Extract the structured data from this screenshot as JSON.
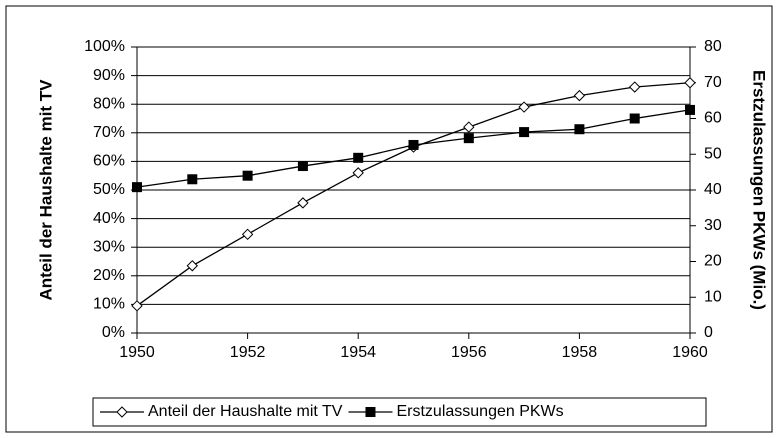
{
  "chart_data": {
    "type": "line",
    "x": [
      1950,
      1951,
      1952,
      1953,
      1954,
      1955,
      1956,
      1957,
      1958,
      1959,
      1960
    ],
    "xlim": [
      1950,
      1960
    ],
    "xticks": [
      1950,
      1952,
      1954,
      1956,
      1958,
      1960
    ],
    "ylabel": "Anteil der Haushalte mit TV",
    "y2label": "Erstzulassungen PKWs (Mio.)",
    "ylim": [
      0,
      100
    ],
    "yticks": [
      {
        "value": 0,
        "label": "0%"
      },
      {
        "value": 10,
        "label": "10%"
      },
      {
        "value": 20,
        "label": "20%"
      },
      {
        "value": 30,
        "label": "30%"
      },
      {
        "value": 40,
        "label": "40%"
      },
      {
        "value": 50,
        "label": "50%"
      },
      {
        "value": 60,
        "label": "60%"
      },
      {
        "value": 70,
        "label": "70%"
      },
      {
        "value": 80,
        "label": "80%"
      },
      {
        "value": 90,
        "label": "90%"
      },
      {
        "value": 100,
        "label": "100%"
      }
    ],
    "y2lim": [
      0,
      80
    ],
    "y2ticks": [
      0,
      10,
      20,
      30,
      40,
      50,
      60,
      70,
      80
    ],
    "grid": true,
    "legend": "bottom",
    "series": [
      {
        "name": "Anteil der Haushalte mit TV",
        "color": "#000000",
        "marker": "diamond",
        "values": [
          9.5,
          23.5,
          34.5,
          45.5,
          56,
          65,
          72,
          79,
          83,
          86,
          87.5
        ]
      },
      {
        "name": "Erstzulassungen PKWs",
        "color": "#000000",
        "marker": "square",
        "axis": "y2",
        "values": [
          40.8,
          43,
          44,
          46.7,
          49,
          52.6,
          54.5,
          56.2,
          57,
          60,
          62.4
        ]
      }
    ]
  }
}
